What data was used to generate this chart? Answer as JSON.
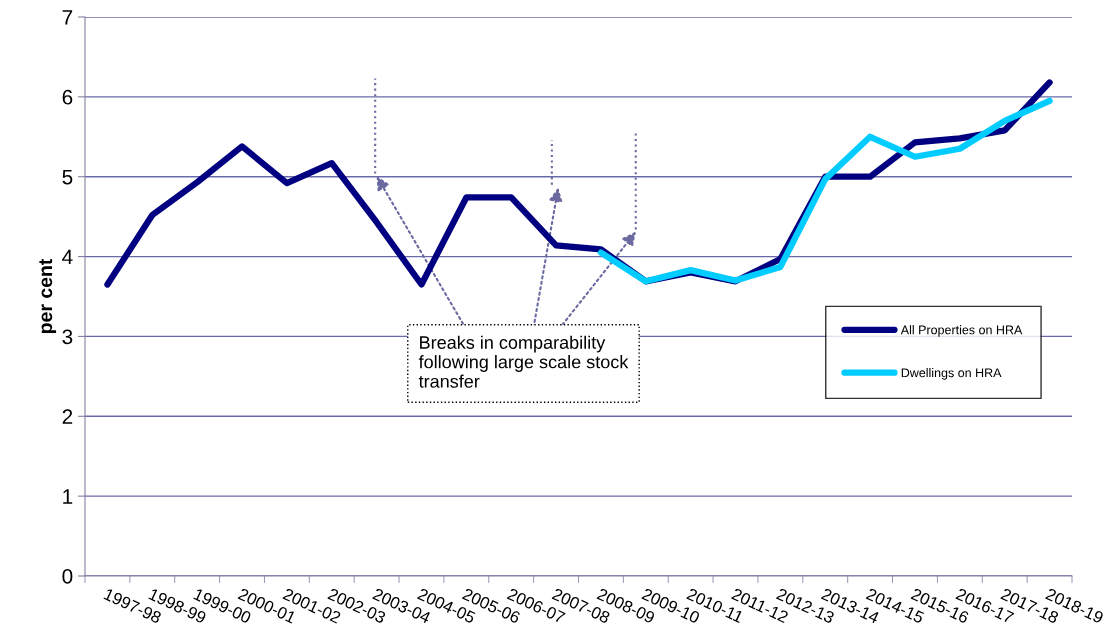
{
  "chart_data": {
    "type": "line",
    "ylabel": "per cent",
    "categories": [
      "1997-98",
      "1998-99",
      "1999-00",
      "2000-01",
      "2001-02",
      "2002-03",
      "2003-04",
      "2004-05",
      "2005-06",
      "2006-07",
      "2007-08",
      "2008-09",
      "2009-10",
      "2010-11",
      "2011-12",
      "2012-13",
      "2013-14",
      "2014-15",
      "2015-16",
      "2016-17",
      "2017-18",
      "2018-19"
    ],
    "series": [
      {
        "name": "All Properties on HRA",
        "color": "#000080",
        "values": [
          3.65,
          4.52,
          4.93,
          5.38,
          4.92,
          5.17,
          4.43,
          3.65,
          4.74,
          4.74,
          4.14,
          4.09,
          3.69,
          3.8,
          3.69,
          3.97,
          5.0,
          5.0,
          5.43,
          5.48,
          5.58,
          6.18
        ]
      },
      {
        "name": "Dwellings on HRA",
        "color": "#00ccff",
        "values": [
          null,
          null,
          null,
          null,
          null,
          null,
          null,
          null,
          null,
          null,
          null,
          4.05,
          3.69,
          3.83,
          3.7,
          3.87,
          4.97,
          5.5,
          5.25,
          5.35,
          5.7,
          5.95
        ]
      }
    ],
    "ylim": [
      0,
      7
    ],
    "yticks": [
      0,
      1,
      2,
      3,
      4,
      5,
      6,
      7
    ],
    "grid": "y",
    "legend": "right",
    "marker": "none",
    "line_style": "solid",
    "annotations": [
      "Breaks in comparability following large scale stock transfer"
    ]
  }
}
